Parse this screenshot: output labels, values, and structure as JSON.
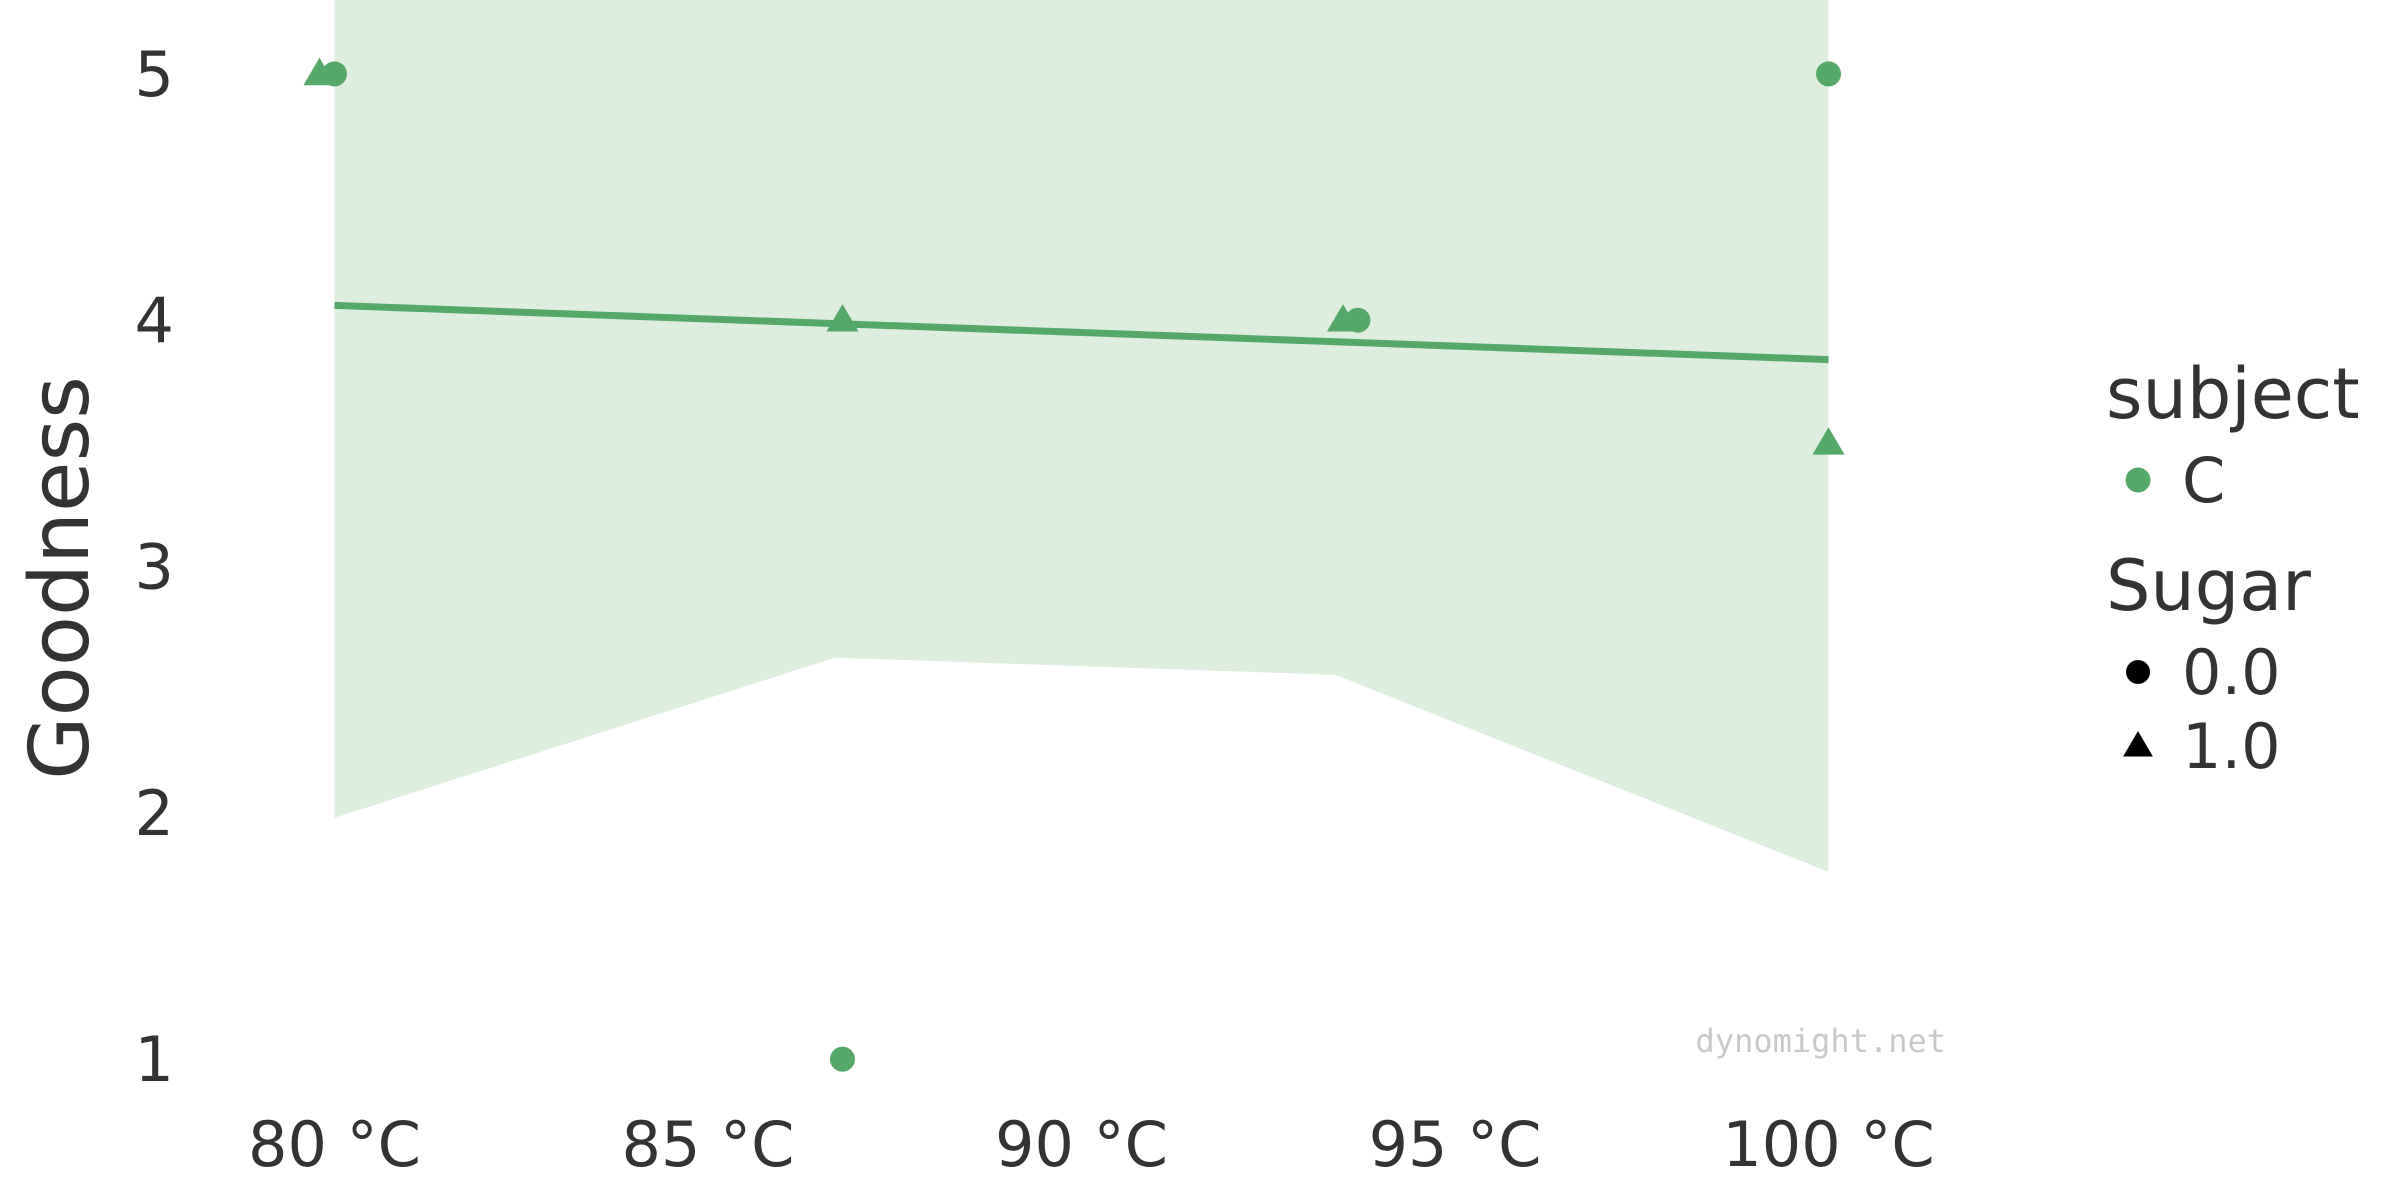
{
  "chart_data": {
    "type": "scatter",
    "ylabel": "Goodness",
    "x_ticks": [
      {
        "value": 80,
        "label": "80 °C"
      },
      {
        "value": 85,
        "label": "85 °C"
      },
      {
        "value": 90,
        "label": "90 °C"
      },
      {
        "value": 95,
        "label": "95 °C"
      },
      {
        "value": 100,
        "label": "100 °C"
      }
    ],
    "y_ticks": [
      {
        "value": 1,
        "label": "1"
      },
      {
        "value": 2,
        "label": "2"
      },
      {
        "value": 3,
        "label": "3"
      },
      {
        "value": 4,
        "label": "4"
      },
      {
        "value": 5,
        "label": "5"
      }
    ],
    "xlim": [
      78.2,
      103.5
    ],
    "ylim": [
      0.55,
      5.3
    ],
    "color": "#55a868",
    "band_color": "#ddeedf",
    "points": [
      {
        "x": 79.8,
        "y": 5,
        "sugar": 1
      },
      {
        "x": 80.0,
        "y": 5,
        "sugar": 0
      },
      {
        "x": 86.8,
        "y": 4,
        "sugar": 1
      },
      {
        "x": 86.8,
        "y": 1,
        "sugar": 0
      },
      {
        "x": 93.5,
        "y": 4,
        "sugar": 1
      },
      {
        "x": 93.7,
        "y": 4,
        "sugar": 0
      },
      {
        "x": 100.0,
        "y": 5,
        "sugar": 0
      },
      {
        "x": 100.0,
        "y": 3.5,
        "sugar": 1
      }
    ],
    "fit_line": [
      {
        "x": 80.0,
        "y": 4.06
      },
      {
        "x": 100.0,
        "y": 3.84
      }
    ],
    "confidence_band": {
      "upper": [
        {
          "x": 80.0,
          "y": 5.3
        },
        {
          "x": 100.0,
          "y": 5.3
        }
      ],
      "lower": [
        {
          "x": 80.0,
          "y": 1.98
        },
        {
          "x": 86.7,
          "y": 2.63
        },
        {
          "x": 93.4,
          "y": 2.56
        },
        {
          "x": 100.0,
          "y": 1.76
        }
      ]
    },
    "legend": {
      "placement": "right",
      "hue_title": "subject",
      "hue_entries": [
        {
          "label": "C",
          "color": "#55a868"
        }
      ],
      "style_title": "Sugar",
      "style_entries": [
        {
          "label": "0.0",
          "marker": "circle"
        },
        {
          "label": "1.0",
          "marker": "triangle"
        }
      ]
    },
    "watermark": "dynomight.net"
  }
}
